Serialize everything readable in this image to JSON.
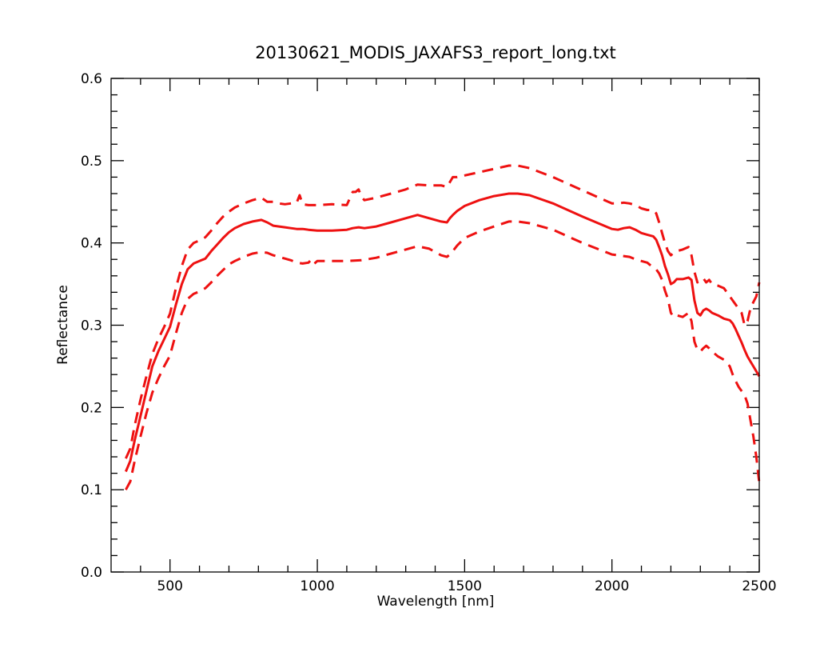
{
  "colors": {
    "series": "#ee1111",
    "axis": "#000000",
    "background": "#ffffff"
  },
  "chart_data": {
    "type": "line",
    "title": "20130621_MODIS_JAXAFS3_report_long.txt",
    "xlabel": "Wavelength [nm]",
    "ylabel": "Reflectance",
    "xlim": [
      300,
      2500
    ],
    "ylim": [
      0.0,
      0.6
    ],
    "xticks": [
      500,
      1000,
      1500,
      2000,
      2500
    ],
    "xtick_labels": [
      "500",
      "1000",
      "1500",
      "2000",
      "2500"
    ],
    "yticks": [
      0.0,
      0.1,
      0.2,
      0.3,
      0.4,
      0.5,
      0.6
    ],
    "ytick_labels": [
      "0.0",
      "0.1",
      "0.2",
      "0.3",
      "0.4",
      "0.5",
      "0.6"
    ],
    "grid": false,
    "legend": "none",
    "series": [
      {
        "style": "solid",
        "x": [
          350,
          365,
          380,
          400,
          420,
          440,
          460,
          480,
          500,
          520,
          540,
          560,
          580,
          600,
          620,
          640,
          660,
          680,
          700,
          720,
          750,
          780,
          810,
          830,
          850,
          870,
          890,
          910,
          930,
          950,
          970,
          1000,
          1050,
          1100,
          1120,
          1140,
          1160,
          1200,
          1250,
          1300,
          1340,
          1380,
          1420,
          1440,
          1450,
          1460,
          1475,
          1500,
          1550,
          1600,
          1650,
          1680,
          1720,
          1800,
          1900,
          2000,
          2020,
          2040,
          2060,
          2080,
          2100,
          2120,
          2140,
          2150,
          2160,
          2170,
          2180,
          2190,
          2200,
          2210,
          2220,
          2240,
          2260,
          2270,
          2280,
          2290,
          2300,
          2310,
          2320,
          2330,
          2340,
          2360,
          2380,
          2400,
          2410,
          2420,
          2430,
          2440,
          2450,
          2460,
          2470,
          2480,
          2490,
          2500
        ],
        "y": [
          0.122,
          0.135,
          0.16,
          0.19,
          0.22,
          0.25,
          0.268,
          0.283,
          0.298,
          0.325,
          0.35,
          0.368,
          0.375,
          0.378,
          0.381,
          0.39,
          0.398,
          0.406,
          0.413,
          0.418,
          0.423,
          0.426,
          0.428,
          0.425,
          0.421,
          0.42,
          0.419,
          0.418,
          0.417,
          0.417,
          0.416,
          0.415,
          0.415,
          0.416,
          0.418,
          0.419,
          0.418,
          0.42,
          0.425,
          0.43,
          0.434,
          0.43,
          0.426,
          0.425,
          0.43,
          0.434,
          0.439,
          0.445,
          0.452,
          0.457,
          0.46,
          0.46,
          0.458,
          0.448,
          0.432,
          0.417,
          0.416,
          0.418,
          0.419,
          0.416,
          0.412,
          0.41,
          0.408,
          0.404,
          0.395,
          0.385,
          0.372,
          0.362,
          0.35,
          0.352,
          0.356,
          0.356,
          0.358,
          0.355,
          0.33,
          0.315,
          0.312,
          0.318,
          0.32,
          0.318,
          0.315,
          0.312,
          0.308,
          0.306,
          0.302,
          0.295,
          0.287,
          0.279,
          0.27,
          0.262,
          0.256,
          0.25,
          0.244,
          0.238
        ]
      },
      {
        "style": "dashed",
        "x": [
          350,
          365,
          380,
          400,
          420,
          440,
          460,
          480,
          500,
          520,
          540,
          560,
          580,
          600,
          620,
          640,
          660,
          680,
          700,
          720,
          750,
          780,
          810,
          830,
          850,
          870,
          890,
          910,
          930,
          940,
          950,
          970,
          1000,
          1050,
          1100,
          1110,
          1120,
          1130,
          1140,
          1150,
          1160,
          1200,
          1250,
          1300,
          1340,
          1380,
          1420,
          1440,
          1450,
          1460,
          1475,
          1500,
          1550,
          1600,
          1650,
          1680,
          1720,
          1800,
          1900,
          2000,
          2020,
          2040,
          2060,
          2080,
          2100,
          2120,
          2140,
          2150,
          2160,
          2170,
          2180,
          2190,
          2200,
          2210,
          2220,
          2240,
          2260,
          2270,
          2280,
          2290,
          2300,
          2310,
          2320,
          2330,
          2340,
          2360,
          2380,
          2400,
          2410,
          2420,
          2430,
          2440,
          2450,
          2460,
          2470,
          2480,
          2490,
          2500
        ],
        "y": [
          0.138,
          0.15,
          0.178,
          0.21,
          0.238,
          0.265,
          0.283,
          0.298,
          0.314,
          0.345,
          0.372,
          0.392,
          0.4,
          0.403,
          0.407,
          0.415,
          0.424,
          0.432,
          0.438,
          0.443,
          0.448,
          0.452,
          0.455,
          0.45,
          0.45,
          0.448,
          0.447,
          0.448,
          0.449,
          0.458,
          0.447,
          0.446,
          0.446,
          0.447,
          0.446,
          0.454,
          0.462,
          0.462,
          0.465,
          0.456,
          0.452,
          0.455,
          0.46,
          0.465,
          0.471,
          0.47,
          0.47,
          0.468,
          0.474,
          0.48,
          0.48,
          0.482,
          0.486,
          0.49,
          0.494,
          0.494,
          0.491,
          0.48,
          0.464,
          0.448,
          0.448,
          0.449,
          0.448,
          0.446,
          0.442,
          0.44,
          0.44,
          0.436,
          0.425,
          0.412,
          0.4,
          0.39,
          0.385,
          0.388,
          0.39,
          0.392,
          0.395,
          0.385,
          0.365,
          0.352,
          0.355,
          0.357,
          0.352,
          0.355,
          0.35,
          0.348,
          0.345,
          0.335,
          0.33,
          0.325,
          0.32,
          0.315,
          0.3,
          0.305,
          0.32,
          0.328,
          0.335,
          0.352
        ]
      },
      {
        "style": "dashed",
        "x": [
          350,
          365,
          380,
          400,
          420,
          440,
          460,
          480,
          500,
          520,
          540,
          560,
          580,
          600,
          620,
          640,
          660,
          680,
          700,
          720,
          750,
          780,
          810,
          830,
          850,
          870,
          890,
          910,
          930,
          950,
          970,
          980,
          990,
          1000,
          1050,
          1100,
          1150,
          1200,
          1250,
          1300,
          1340,
          1380,
          1420,
          1440,
          1450,
          1460,
          1475,
          1500,
          1550,
          1600,
          1650,
          1680,
          1720,
          1800,
          1900,
          2000,
          2020,
          2040,
          2060,
          2080,
          2100,
          2120,
          2140,
          2150,
          2160,
          2170,
          2180,
          2190,
          2200,
          2210,
          2220,
          2240,
          2260,
          2270,
          2280,
          2290,
          2300,
          2310,
          2320,
          2330,
          2340,
          2360,
          2380,
          2400,
          2410,
          2420,
          2430,
          2440,
          2450,
          2460,
          2470,
          2480,
          2490,
          2500
        ],
        "y": [
          0.1,
          0.11,
          0.135,
          0.165,
          0.193,
          0.218,
          0.235,
          0.25,
          0.263,
          0.29,
          0.315,
          0.332,
          0.338,
          0.341,
          0.345,
          0.352,
          0.36,
          0.367,
          0.374,
          0.378,
          0.383,
          0.387,
          0.389,
          0.388,
          0.385,
          0.383,
          0.381,
          0.379,
          0.376,
          0.375,
          0.376,
          0.38,
          0.375,
          0.378,
          0.378,
          0.378,
          0.379,
          0.382,
          0.387,
          0.392,
          0.396,
          0.393,
          0.385,
          0.383,
          0.386,
          0.39,
          0.397,
          0.406,
          0.414,
          0.42,
          0.426,
          0.426,
          0.424,
          0.416,
          0.4,
          0.386,
          0.385,
          0.384,
          0.383,
          0.38,
          0.378,
          0.376,
          0.37,
          0.368,
          0.363,
          0.355,
          0.342,
          0.332,
          0.315,
          0.31,
          0.312,
          0.31,
          0.315,
          0.305,
          0.28,
          0.27,
          0.268,
          0.272,
          0.275,
          0.272,
          0.268,
          0.262,
          0.258,
          0.25,
          0.24,
          0.232,
          0.225,
          0.22,
          0.215,
          0.205,
          0.185,
          0.165,
          0.14,
          0.108
        ]
      }
    ]
  }
}
